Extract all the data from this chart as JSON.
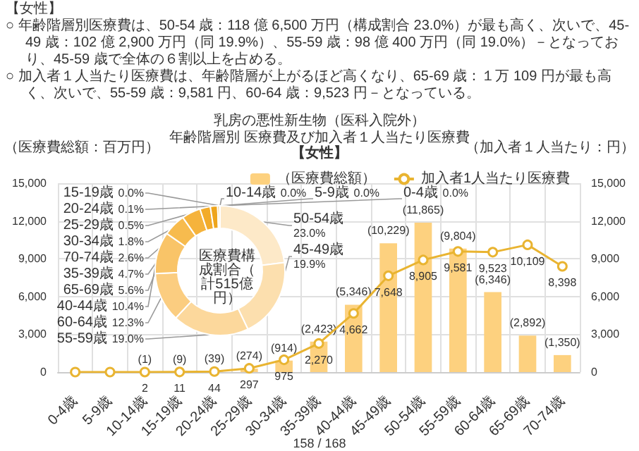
{
  "chart_data": [
    {
      "type": "bar",
      "title": "乳房の悪性新生物（医科入院外）",
      "subtitle": "年齢階層別 医療費及び加入者１人当たり医療費",
      "annotations": [
        "【女性】",
        "○ 年齢階層別医療費は、50-54 歳：118 億 6,500 万円（構成割合 23.0%）が最も高く、次いで、45-49 歳：102 億 2,900 万円（同 19.9%）、55-59 歳：98 億 400 万円（同 19.0%）－となっており、45-59 歳で全体の６割以上を占める。",
        "○ 加入者１人当たり医療費は、年齢階層が上がるほど高くなり、65-69 歳：１万 109 円が最も高く、次いで、55-59 歳：9,581 円、60-64 歳：9,523 円－となっている。",
        "【女性】",
        "158 / 168"
      ],
      "ylabel": "（医療費総額：百万円）",
      "y2label": "（加入者１人当たり：円）",
      "categories": [
        "0-4歳",
        "5-9歳",
        "10-14歳",
        "15-19歳",
        "20-24歳",
        "25-29歳",
        "30-34歳",
        "35-39歳",
        "40-44歳",
        "45-49歳",
        "50-54歳",
        "55-59歳",
        "60-64歳",
        "65-69歳",
        "70-74歳"
      ],
      "series": [
        {
          "name": "（医療費総額）",
          "type": "bar",
          "color": "#fdd17f",
          "values": [
            0,
            0,
            1,
            9,
            39,
            274,
            914,
            2423,
            5346,
            10229,
            11865,
            9804,
            6346,
            2892,
            1350
          ],
          "value_labels": [
            null,
            null,
            "(1)",
            "(9)",
            "(39)",
            "(274)",
            "(914)",
            "(2,423)",
            "(5,346)",
            "(10,229)",
            "(11,865)",
            "(9,804)",
            "(6,346)",
            "(2,892)",
            "(1,350)"
          ]
        },
        {
          "name": "加入者1人当たり医療費",
          "type": "line",
          "axis": "y2",
          "color": "#e9b431",
          "marker": "circle",
          "values": [
            0,
            0,
            2,
            11,
            44,
            297,
            975,
            2270,
            4662,
            7648,
            8905,
            9581,
            9523,
            10109,
            8398
          ],
          "value_labels": [
            null,
            null,
            "2",
            "11",
            "44",
            "297",
            "975",
            "2,270",
            "4,662",
            "7,648",
            "8,905",
            "9,581",
            "9,523",
            "10,109",
            "8,398"
          ]
        }
      ],
      "ylim": [
        0,
        15000
      ],
      "yticks": [
        0,
        {
          "value": 3000,
          "label": "3,000"
        },
        {
          "value": 6000,
          "label": "6,000"
        },
        {
          "value": 9000,
          "label": "9,000"
        },
        {
          "value": 12000,
          "label": "12,000"
        },
        {
          "value": 15000,
          "label": "15,000"
        }
      ],
      "y2lim": [
        0,
        15000
      ],
      "y2ticks": [
        0,
        {
          "value": 3000,
          "label": "3,000"
        },
        {
          "value": 6000,
          "label": "6,000"
        },
        {
          "value": 9000,
          "label": "9,000"
        },
        {
          "value": 12000,
          "label": "12,000"
        },
        {
          "value": 15000,
          "label": "15,000"
        }
      ],
      "grid": true,
      "legend": "top right"
    },
    {
      "type": "donut",
      "title": "医療費構成割合（計515億円）",
      "categories": [
        "50-54歳",
        "45-49歳",
        "55-59歳",
        "60-64歳",
        "40-44歳",
        "65-69歳",
        "35-39歳",
        "70-74歳",
        "30-34歳",
        "25-29歳",
        "20-24歳",
        "15-19歳",
        "10-14歳",
        "5-9歳",
        "0-4歳"
      ],
      "values": [
        23.0,
        19.9,
        19.0,
        12.3,
        10.4,
        5.6,
        4.7,
        2.6,
        1.8,
        0.5,
        0.1,
        0,
        0,
        0,
        0
      ],
      "value_labels": [
        "23.0%",
        "19.9%",
        "19.0%",
        "12.3%",
        "10.4%",
        "5.6%",
        "4.7%",
        "2.6%",
        "1.8%",
        "0.5%",
        "0.1%",
        "0.0%",
        "0.0%",
        "0.0%",
        "0.0%"
      ],
      "colors": [
        "#fde9c8",
        "#fcdfae",
        "#fcd89c",
        "#fbcd80",
        "#f9c468",
        "#f7bb4e",
        "#f5b33c",
        "#f2ab2a",
        "#eea51c",
        "#e9a012",
        "#e59c0a",
        "#e29a06",
        "#e09804",
        "#de9602",
        "#dc9400"
      ]
    }
  ]
}
